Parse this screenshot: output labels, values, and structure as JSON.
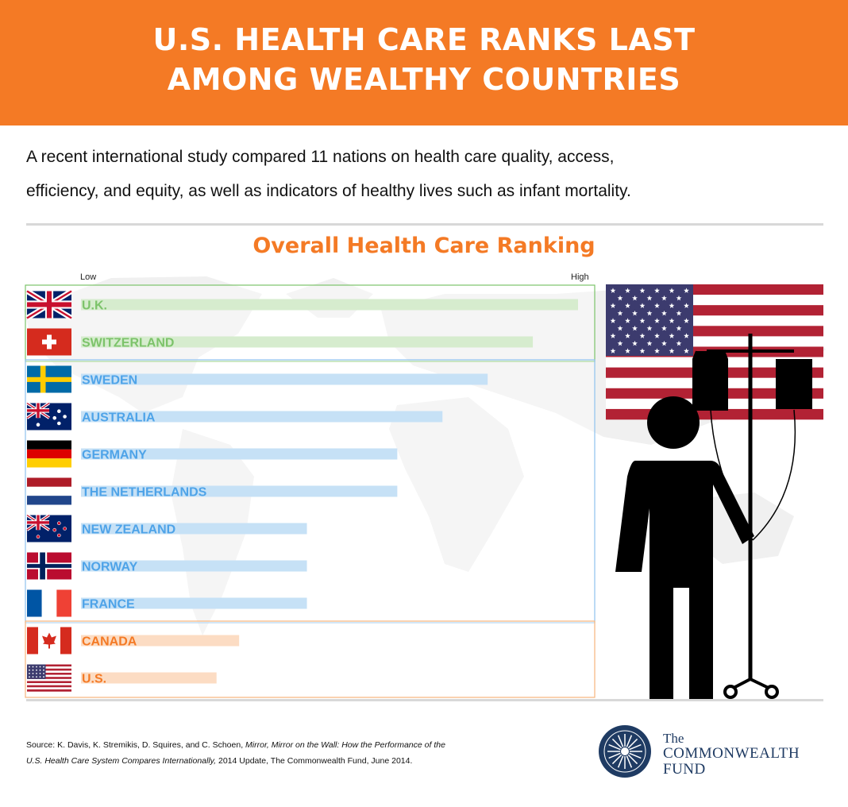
{
  "header": {
    "title_line1": "U.S. HEALTH CARE RANKS LAST",
    "title_line2": "AMONG WEALTHY COUNTRIES"
  },
  "intro": {
    "line1": "A recent international study compared 11 nations on health care quality, access,",
    "line2": "efficiency, and equity, as well as indicators of healthy lives such as infant mortality."
  },
  "chart_data": {
    "type": "bar",
    "orientation": "horizontal",
    "title": "Overall Health Care Ranking",
    "scale_low_label": "Low",
    "scale_high_label": "High",
    "categories": [
      "U.K.",
      "SWITZERLAND",
      "SWEDEN",
      "AUSTRALIA",
      "GERMANY",
      "THE NETHERLANDS",
      "NEW ZEALAND",
      "NORWAY",
      "FRANCE",
      "CANADA",
      "U.S."
    ],
    "values": [
      11,
      10,
      9,
      8,
      7,
      7,
      5,
      5,
      5,
      3.5,
      3
    ],
    "flags": [
      "uk",
      "ch",
      "se",
      "au",
      "de",
      "nl",
      "nz",
      "no",
      "fr",
      "ca",
      "us"
    ],
    "group_of_each": [
      0,
      0,
      1,
      1,
      1,
      1,
      1,
      1,
      1,
      2,
      2
    ],
    "groups": [
      {
        "color": "#7cc36a",
        "bar_color": "#d6ecce",
        "border_color": "#7cc36a"
      },
      {
        "color": "#4ea3e8",
        "bar_color": "#c6e1f6",
        "border_color": "#8ec2ee"
      },
      {
        "color": "#f47a25",
        "bar_color": "#fcdcc3",
        "border_color": "#f7b57c"
      }
    ],
    "xlim": [
      0,
      11
    ],
    "grid": false,
    "legend": "none"
  },
  "source": {
    "prefix": "Source: K. Davis, K. Stremikis, D. Squires, and C. Schoen,  ",
    "title_part1": "Mirror, Mirror on the Wall: How the Performance of the",
    "title_part2": "U.S. Health Care System Compares Internationally,",
    "suffix": "  2014 Update, The Commonwealth Fund,  June 2014."
  },
  "logo": {
    "line1": "The",
    "line2": "COMMONWEALTH",
    "line3": "FUND"
  },
  "colors": {
    "accent": "#f47a25",
    "dark_blue": "#1f3b63",
    "flag_red": "#b22234",
    "flag_blue": "#3c3b6e"
  }
}
